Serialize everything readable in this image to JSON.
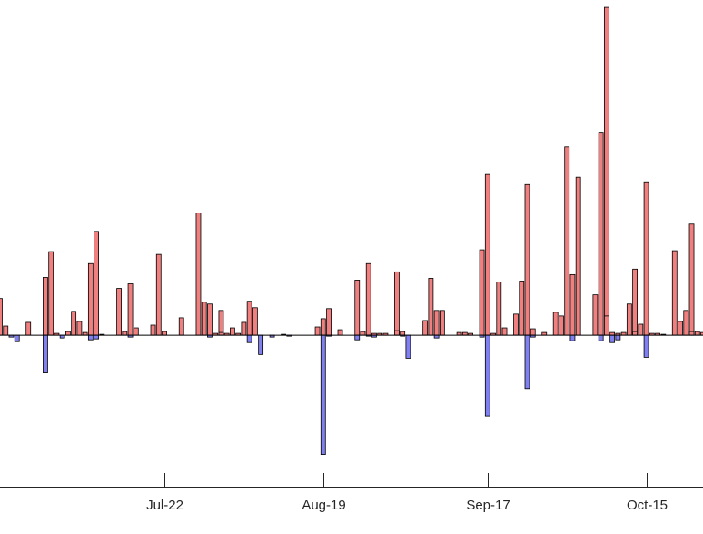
{
  "chart_data": {
    "type": "bar",
    "title": "",
    "xlabel": "",
    "ylabel": "",
    "x_axis": "date",
    "xlim": [
      "2019-06-23",
      "2019-10-25"
    ],
    "ylim": [
      -16.5,
      36.5
    ],
    "grid": false,
    "legend": "none",
    "colors": {
      "positive": "#f08080",
      "negative": "#8080f0",
      "edge": "#000000"
    },
    "x_ticks": [
      {
        "date": "2019-07-22",
        "label": "Jul-22"
      },
      {
        "date": "2019-08-19",
        "label": "Aug-19"
      },
      {
        "date": "2019-09-17",
        "label": "Sep-17"
      },
      {
        "date": "2019-10-15",
        "label": "Oct-15"
      }
    ],
    "bars": [
      {
        "date": "2019-06-23",
        "value": 4.0
      },
      {
        "date": "2019-06-24",
        "value": 1.0
      },
      {
        "date": "2019-06-25",
        "value": -0.2
      },
      {
        "date": "2019-06-26",
        "value": -0.7
      },
      {
        "date": "2019-06-28",
        "value": 1.4
      },
      {
        "date": "2019-07-01",
        "value": 6.3
      },
      {
        "date": "2019-07-01",
        "value": -4.1
      },
      {
        "date": "2019-07-02",
        "value": 9.1
      },
      {
        "date": "2019-07-03",
        "value": 0.2
      },
      {
        "date": "2019-07-04",
        "value": -0.3
      },
      {
        "date": "2019-07-05",
        "value": 0.4
      },
      {
        "date": "2019-07-06",
        "value": 2.6
      },
      {
        "date": "2019-07-07",
        "value": 1.5
      },
      {
        "date": "2019-07-08",
        "value": 0.3
      },
      {
        "date": "2019-07-09",
        "value": 7.8
      },
      {
        "date": "2019-07-09",
        "value": -0.5
      },
      {
        "date": "2019-07-10",
        "value": 11.3
      },
      {
        "date": "2019-07-10",
        "value": -0.4
      },
      {
        "date": "2019-07-11",
        "value": 0.1
      },
      {
        "date": "2019-07-14",
        "value": 5.1
      },
      {
        "date": "2019-07-15",
        "value": 0.4
      },
      {
        "date": "2019-07-16",
        "value": 5.6
      },
      {
        "date": "2019-07-16",
        "value": -0.2
      },
      {
        "date": "2019-07-17",
        "value": 0.8
      },
      {
        "date": "2019-07-20",
        "value": 1.1
      },
      {
        "date": "2019-07-21",
        "value": 8.8
      },
      {
        "date": "2019-07-22",
        "value": 0.4
      },
      {
        "date": "2019-07-25",
        "value": 1.9
      },
      {
        "date": "2019-07-28",
        "value": 13.3
      },
      {
        "date": "2019-07-29",
        "value": 3.6
      },
      {
        "date": "2019-07-30",
        "value": 3.4
      },
      {
        "date": "2019-07-30",
        "value": -0.2
      },
      {
        "date": "2019-07-31",
        "value": 0.2
      },
      {
        "date": "2019-08-01",
        "value": 2.7
      },
      {
        "date": "2019-08-01",
        "value": 0.3
      },
      {
        "date": "2019-08-02",
        "value": 0.2
      },
      {
        "date": "2019-08-03",
        "value": 0.8
      },
      {
        "date": "2019-08-04",
        "value": 0.2
      },
      {
        "date": "2019-08-05",
        "value": 1.4
      },
      {
        "date": "2019-08-06",
        "value": 3.7
      },
      {
        "date": "2019-08-06",
        "value": -0.8
      },
      {
        "date": "2019-08-07",
        "value": 3.0
      },
      {
        "date": "2019-08-08",
        "value": -2.1
      },
      {
        "date": "2019-08-10",
        "value": -0.2
      },
      {
        "date": "2019-08-12",
        "value": 0.1
      },
      {
        "date": "2019-08-13",
        "value": -0.1
      },
      {
        "date": "2019-08-18",
        "value": 0.9
      },
      {
        "date": "2019-08-19",
        "value": 1.8
      },
      {
        "date": "2019-08-19",
        "value": -13.0
      },
      {
        "date": "2019-08-20",
        "value": 2.9
      },
      {
        "date": "2019-08-20",
        "value": -0.1
      },
      {
        "date": "2019-08-22",
        "value": 0.6
      },
      {
        "date": "2019-08-25",
        "value": 6.0
      },
      {
        "date": "2019-08-25",
        "value": -0.5
      },
      {
        "date": "2019-08-26",
        "value": 0.4
      },
      {
        "date": "2019-08-27",
        "value": 7.8
      },
      {
        "date": "2019-08-27",
        "value": -0.1
      },
      {
        "date": "2019-08-28",
        "value": 0.2
      },
      {
        "date": "2019-08-28",
        "value": -0.2
      },
      {
        "date": "2019-08-29",
        "value": 0.2
      },
      {
        "date": "2019-08-30",
        "value": 0.2
      },
      {
        "date": "2019-09-01",
        "value": 6.9
      },
      {
        "date": "2019-09-01",
        "value": 0.5
      },
      {
        "date": "2019-09-02",
        "value": 0.4
      },
      {
        "date": "2019-09-02",
        "value": -0.1
      },
      {
        "date": "2019-09-03",
        "value": -2.5
      },
      {
        "date": "2019-09-06",
        "value": 1.6
      },
      {
        "date": "2019-09-07",
        "value": 6.2
      },
      {
        "date": "2019-09-08",
        "value": 2.7
      },
      {
        "date": "2019-09-08",
        "value": -0.3
      },
      {
        "date": "2019-09-09",
        "value": 2.7
      },
      {
        "date": "2019-09-12",
        "value": 0.3
      },
      {
        "date": "2019-09-13",
        "value": 0.3
      },
      {
        "date": "2019-09-14",
        "value": 0.2
      },
      {
        "date": "2019-09-16",
        "value": 9.3
      },
      {
        "date": "2019-09-16",
        "value": -0.2
      },
      {
        "date": "2019-09-17",
        "value": 17.5
      },
      {
        "date": "2019-09-17",
        "value": -8.8
      },
      {
        "date": "2019-09-18",
        "value": 0.2
      },
      {
        "date": "2019-09-19",
        "value": 5.8
      },
      {
        "date": "2019-09-20",
        "value": 0.8
      },
      {
        "date": "2019-09-22",
        "value": 2.3
      },
      {
        "date": "2019-09-23",
        "value": 5.9
      },
      {
        "date": "2019-09-24",
        "value": 16.4
      },
      {
        "date": "2019-09-24",
        "value": -5.8
      },
      {
        "date": "2019-09-25",
        "value": 0.7
      },
      {
        "date": "2019-09-25",
        "value": -0.2
      },
      {
        "date": "2019-09-27",
        "value": 0.3
      },
      {
        "date": "2019-09-29",
        "value": 2.5
      },
      {
        "date": "2019-09-30",
        "value": 2.1
      },
      {
        "date": "2019-10-01",
        "value": 20.5
      },
      {
        "date": "2019-10-02",
        "value": 6.6
      },
      {
        "date": "2019-10-02",
        "value": -0.6
      },
      {
        "date": "2019-10-03",
        "value": 17.2
      },
      {
        "date": "2019-10-06",
        "value": 4.4
      },
      {
        "date": "2019-10-07",
        "value": 22.1
      },
      {
        "date": "2019-10-07",
        "value": -0.6
      },
      {
        "date": "2019-10-08",
        "value": 35.7
      },
      {
        "date": "2019-10-08",
        "value": 2.1
      },
      {
        "date": "2019-10-09",
        "value": -0.8
      },
      {
        "date": "2019-10-09",
        "value": 0.3
      },
      {
        "date": "2019-10-10",
        "value": 0.2
      },
      {
        "date": "2019-10-10",
        "value": -0.5
      },
      {
        "date": "2019-10-11",
        "value": 0.3
      },
      {
        "date": "2019-10-12",
        "value": 3.4
      },
      {
        "date": "2019-10-13",
        "value": 7.2
      },
      {
        "date": "2019-10-13",
        "value": 0.4
      },
      {
        "date": "2019-10-14",
        "value": 1.2
      },
      {
        "date": "2019-10-15",
        "value": 16.7
      },
      {
        "date": "2019-10-15",
        "value": -2.4
      },
      {
        "date": "2019-10-16",
        "value": 0.2
      },
      {
        "date": "2019-10-17",
        "value": 0.2
      },
      {
        "date": "2019-10-18",
        "value": 0.1
      },
      {
        "date": "2019-10-20",
        "value": 9.2
      },
      {
        "date": "2019-10-21",
        "value": 1.5
      },
      {
        "date": "2019-10-22",
        "value": 2.7
      },
      {
        "date": "2019-10-23",
        "value": 12.1
      },
      {
        "date": "2019-10-23",
        "value": 0.4
      },
      {
        "date": "2019-10-24",
        "value": 0.4
      },
      {
        "date": "2019-10-25",
        "value": 0.3
      }
    ]
  }
}
